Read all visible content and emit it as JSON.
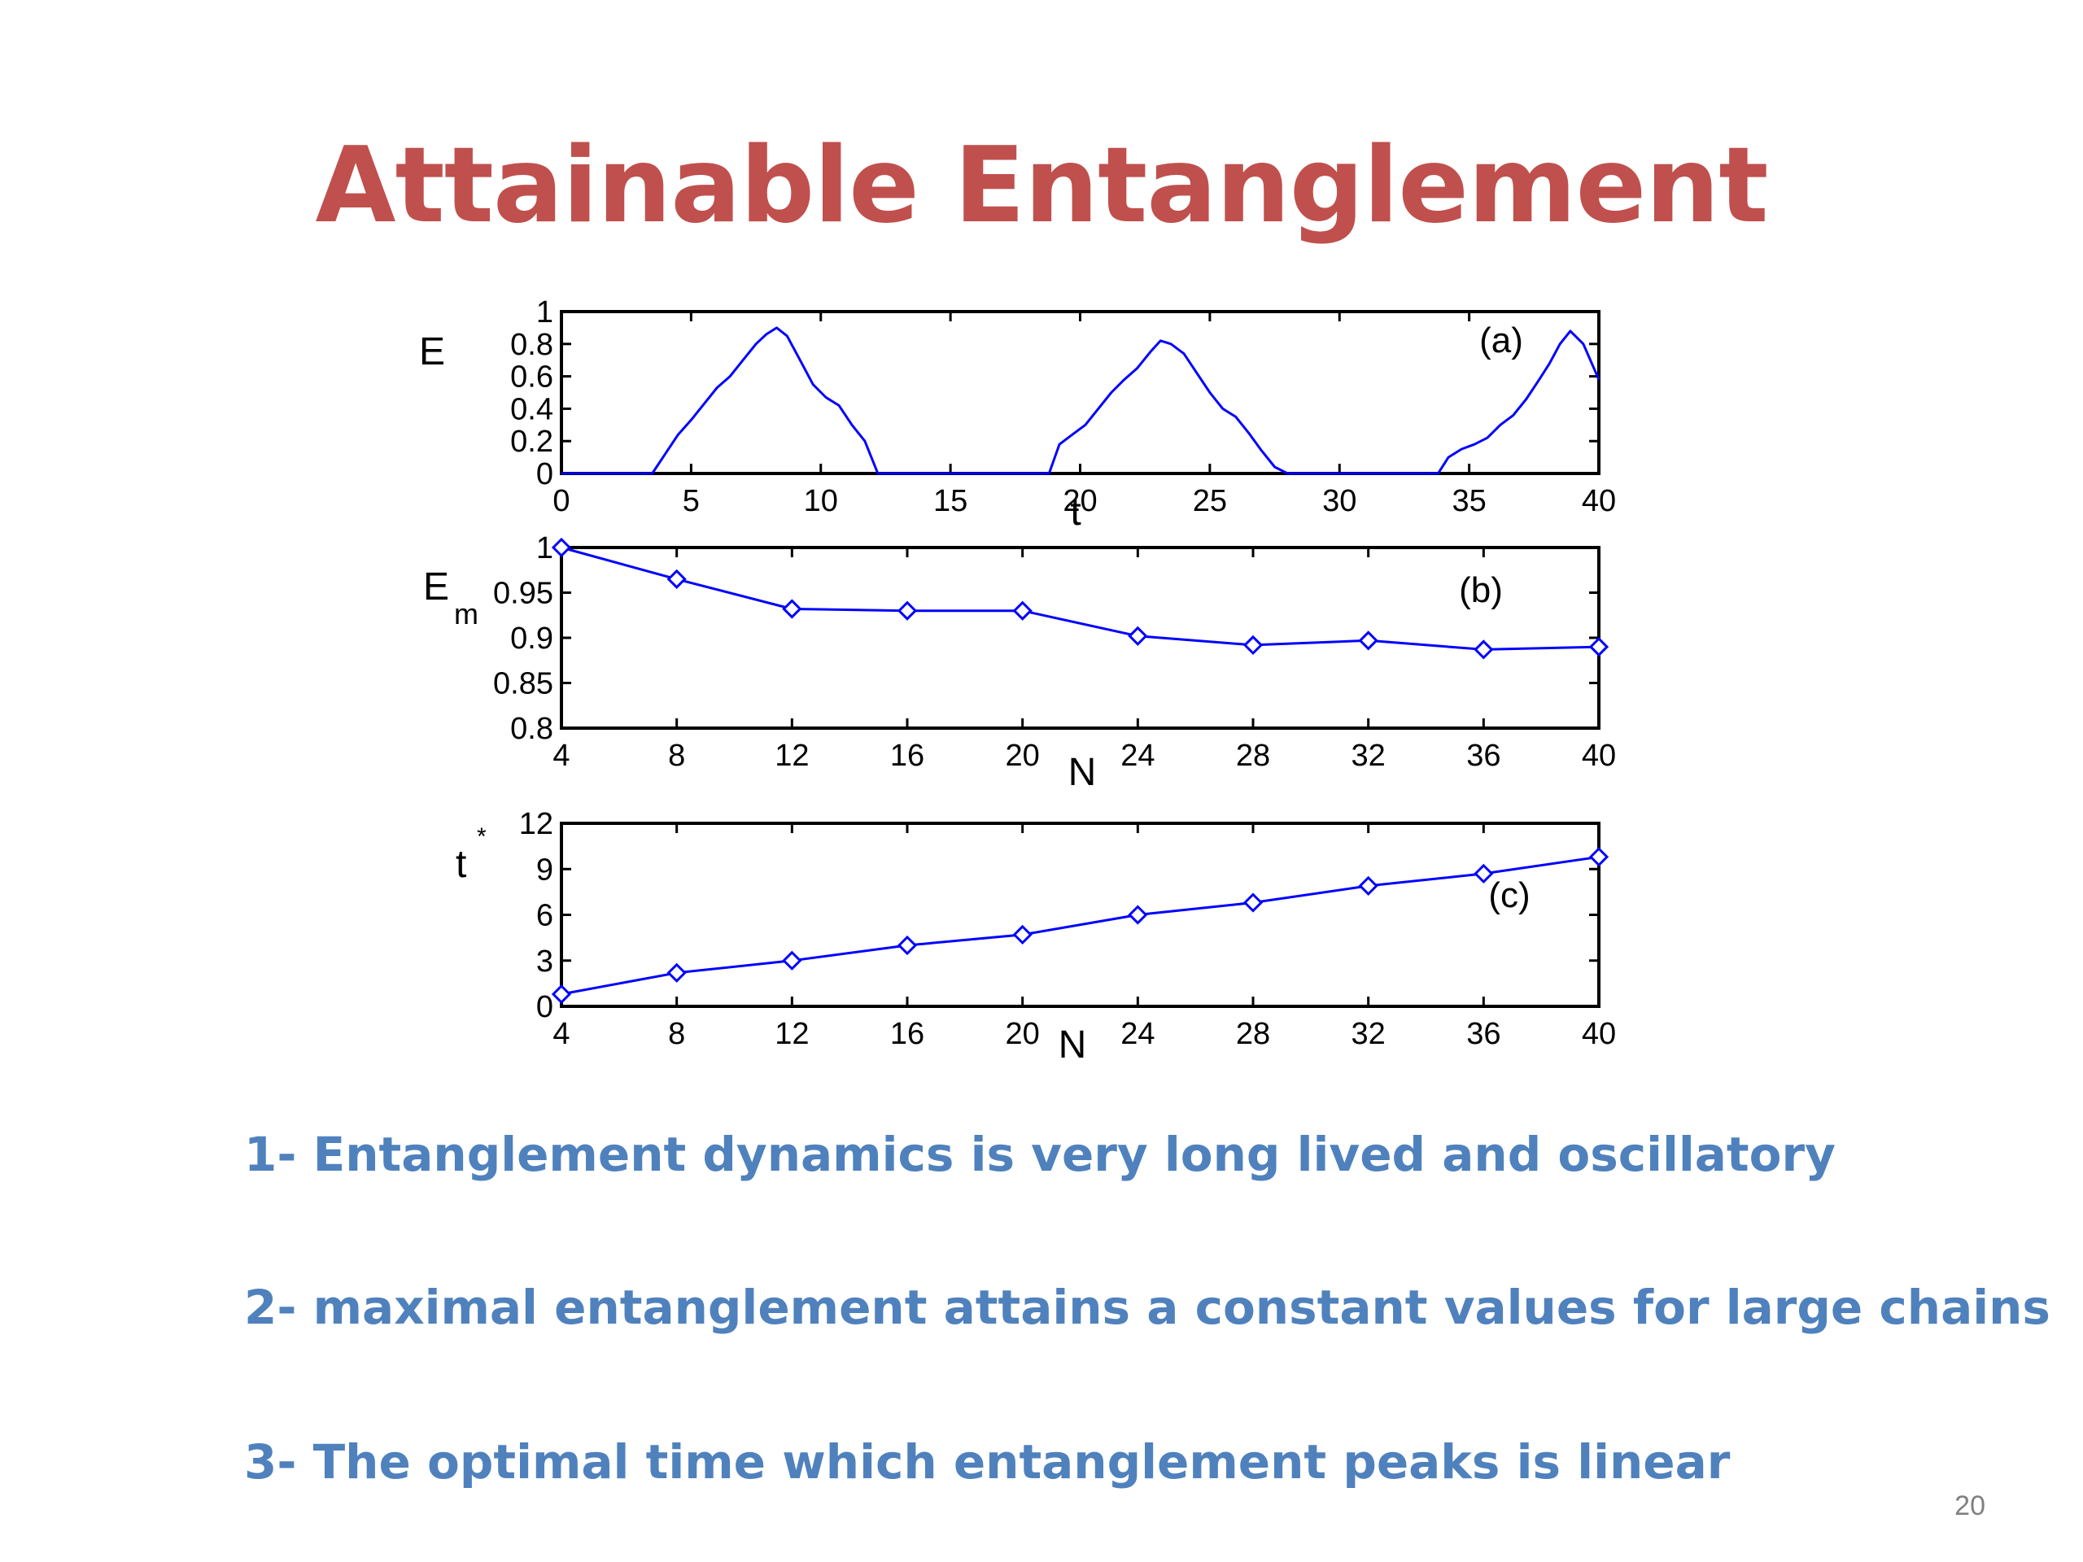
{
  "title": "Attainable Entanglement",
  "bullets": [
    "1- Entanglement dynamics is very long lived and oscillatory",
    "2- maximal entanglement attains a constant values for large chains",
    "3- The optimal time which entanglement peaks is linear"
  ],
  "page_number": "20",
  "colors": {
    "title": "#C0504D",
    "bullets": "#4F81BD",
    "series": "#0000FF"
  },
  "chart_data": [
    {
      "type": "line",
      "panel_label": "(a)",
      "xlabel": "t",
      "ylabel": "E",
      "xlim": [
        0,
        40
      ],
      "ylim": [
        0,
        1
      ],
      "xticks": [
        0,
        5,
        10,
        15,
        20,
        25,
        30,
        35,
        40
      ],
      "yticks": [
        0,
        0.2,
        0.4,
        0.6,
        0.8,
        1
      ],
      "ytick_labels": [
        "0",
        "0.2",
        "0.4",
        "0.6",
        "0.8",
        "1"
      ],
      "x": [
        0,
        3.5,
        4,
        4.5,
        5,
        5.5,
        6,
        6.5,
        7,
        7.5,
        7.9,
        8.3,
        8.7,
        9.2,
        9.7,
        10.2,
        10.7,
        11.2,
        11.7,
        12.2,
        18.8,
        19.2,
        19.7,
        20.2,
        20.7,
        21.2,
        21.7,
        22.2,
        22.7,
        23.1,
        23.5,
        24,
        24.5,
        25,
        25.5,
        26,
        26.5,
        27,
        27.5,
        28,
        33.8,
        34.2,
        34.7,
        35.2,
        35.7,
        36.2,
        36.7,
        37.2,
        37.7,
        38.1,
        38.5,
        38.9,
        39.4,
        40
      ],
      "y": [
        0,
        0,
        0.12,
        0.24,
        0.33,
        0.43,
        0.53,
        0.6,
        0.7,
        0.8,
        0.86,
        0.9,
        0.85,
        0.7,
        0.55,
        0.47,
        0.42,
        0.3,
        0.2,
        0,
        0,
        0.18,
        0.24,
        0.3,
        0.4,
        0.5,
        0.58,
        0.65,
        0.75,
        0.82,
        0.8,
        0.74,
        0.62,
        0.5,
        0.4,
        0.35,
        0.25,
        0.14,
        0.04,
        0,
        0,
        0.1,
        0.15,
        0.18,
        0.22,
        0.3,
        0.36,
        0.46,
        0.58,
        0.68,
        0.8,
        0.88,
        0.8,
        0.58
      ],
      "markers": false
    },
    {
      "type": "line",
      "panel_label": "(b)",
      "xlabel": "N",
      "ylabel": "E",
      "ylabel_subscript": "m",
      "xlim": [
        4,
        40
      ],
      "ylim": [
        0.8,
        1
      ],
      "xticks": [
        4,
        8,
        12,
        16,
        20,
        24,
        28,
        32,
        36,
        40
      ],
      "yticks": [
        0.8,
        0.85,
        0.9,
        0.95,
        1
      ],
      "ytick_labels": [
        "0.8",
        "0.85",
        "0.9",
        "0.95",
        "1"
      ],
      "x": [
        4,
        8,
        12,
        16,
        20,
        24,
        28,
        32,
        36,
        40
      ],
      "y": [
        1.0,
        0.965,
        0.932,
        0.93,
        0.93,
        0.902,
        0.892,
        0.897,
        0.887,
        0.89
      ],
      "markers": true
    },
    {
      "type": "line",
      "panel_label": "(c)",
      "xlabel": "N",
      "ylabel": "t",
      "ylabel_superscript": "*",
      "xlim": [
        4,
        40
      ],
      "ylim": [
        0,
        12
      ],
      "xticks": [
        4,
        8,
        12,
        16,
        20,
        24,
        28,
        32,
        36,
        40
      ],
      "yticks": [
        0,
        3,
        6,
        9,
        12
      ],
      "ytick_labels": [
        "0",
        "3",
        "6",
        "9",
        "12"
      ],
      "x": [
        4,
        8,
        12,
        16,
        20,
        24,
        28,
        32,
        36,
        40
      ],
      "y": [
        0.8,
        2.2,
        3.0,
        4.0,
        4.7,
        6.0,
        6.8,
        7.9,
        8.7,
        9.8
      ],
      "markers": true
    }
  ]
}
